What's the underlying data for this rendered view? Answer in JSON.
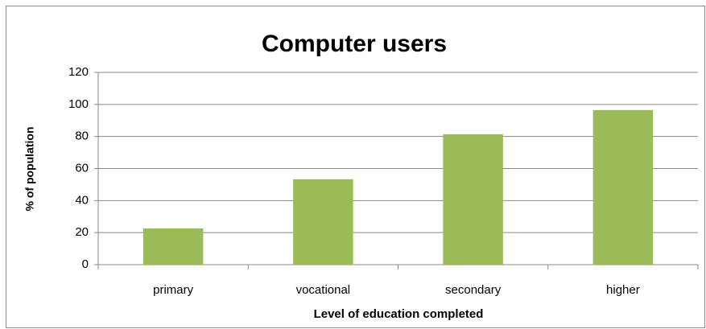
{
  "chart_data": {
    "type": "bar",
    "title": "Computer users",
    "x_label": "Level of education completed",
    "y_label": "% of population",
    "categories": [
      "primary",
      "vocational",
      "secondary",
      "higher"
    ],
    "values": [
      22.6,
      53.3,
      81.4,
      96.5
    ],
    "color": "#9bbb59",
    "ylim": [
      0,
      120
    ],
    "yticks": [
      0,
      20,
      40,
      60,
      80,
      100,
      120
    ],
    "grid": true
  }
}
